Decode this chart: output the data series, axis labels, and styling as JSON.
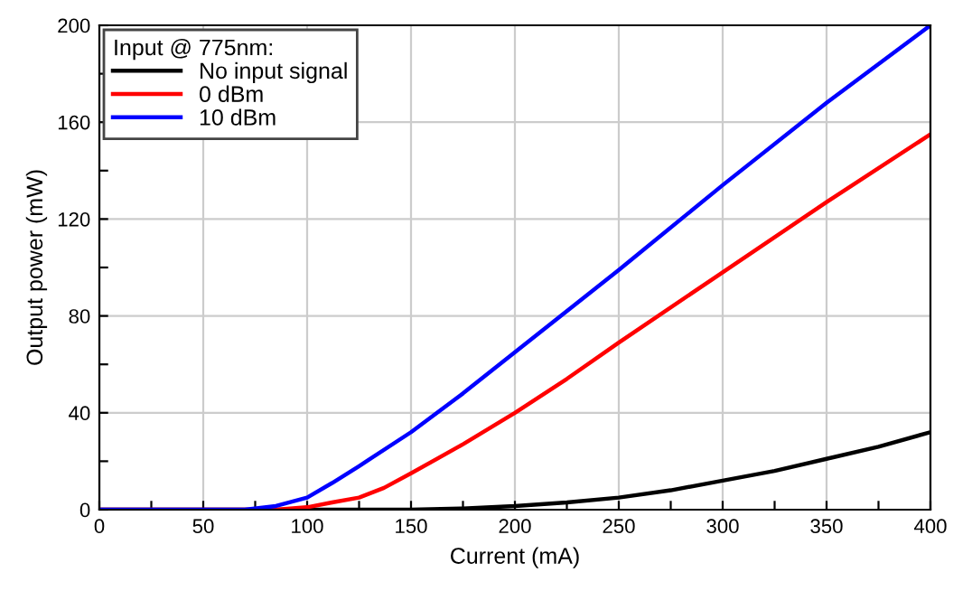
{
  "chart_data": {
    "type": "line",
    "xlabel": "Current (mA)",
    "ylabel": "Output power (mW)",
    "legend_title": "Input @ 775nm:",
    "xlim": [
      0,
      400
    ],
    "ylim": [
      0,
      200
    ],
    "xticks": [
      0,
      {
        "value": 25,
        "label": null
      },
      50,
      {
        "value": 75,
        "label": null
      },
      100,
      {
        "value": 125,
        "label": null
      },
      150,
      {
        "value": 175,
        "label": null
      },
      200,
      {
        "value": 225,
        "label": null
      },
      250,
      {
        "value": 275,
        "label": null
      },
      300,
      {
        "value": 325,
        "label": null
      },
      350,
      {
        "value": 375,
        "label": null
      },
      400
    ],
    "yticks": [
      0,
      {
        "value": 20,
        "label": null
      },
      40,
      {
        "value": 60,
        "label": null
      },
      80,
      {
        "value": 100,
        "label": null
      },
      120,
      {
        "value": 140,
        "label": null
      },
      160,
      {
        "value": 180,
        "label": null
      },
      200
    ],
    "grid": true,
    "legend": "top left",
    "line_style": "solid",
    "marker": "none",
    "series": [
      {
        "name": "No input signal",
        "color": "#000000",
        "x": [
          0,
          50,
          100,
          150,
          175,
          200,
          225,
          250,
          275,
          300,
          325,
          350,
          375,
          400
        ],
        "values": [
          0,
          0,
          0,
          0,
          0.5,
          1.5,
          3,
          5,
          8,
          12,
          16,
          21,
          26,
          32
        ]
      },
      {
        "name": "0 dBm",
        "color": "#ff0000",
        "x": [
          0,
          50,
          85,
          100,
          112,
          125,
          137,
          150,
          175,
          200,
          225,
          250,
          300,
          350,
          400
        ],
        "values": [
          0,
          0,
          0,
          1,
          3,
          5,
          9,
          15,
          27,
          40,
          54,
          69,
          98,
          127,
          155
        ]
      },
      {
        "name": "10 dBm",
        "color": "#0000ff",
        "x": [
          0,
          50,
          70,
          85,
          100,
          112,
          125,
          150,
          175,
          200,
          250,
          300,
          350,
          400
        ],
        "values": [
          0,
          0,
          0,
          1.5,
          5,
          11,
          18,
          32,
          48,
          65,
          99,
          134,
          168,
          200
        ]
      }
    ]
  }
}
